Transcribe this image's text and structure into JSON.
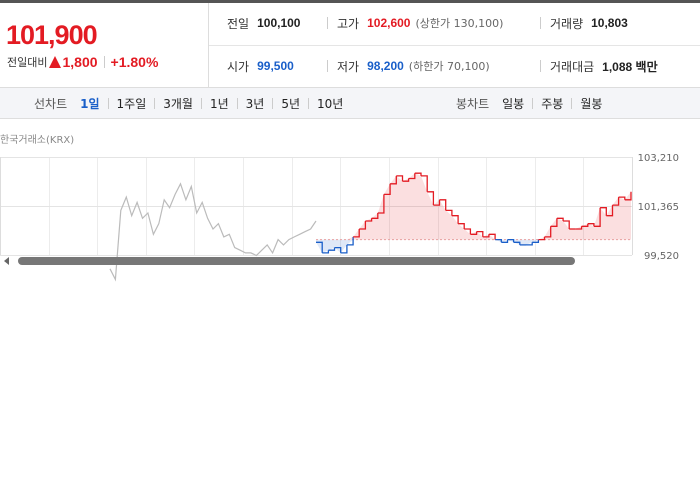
{
  "quote": {
    "price": "101,900",
    "change_label": "전일대비",
    "change_value": "1,800",
    "change_rate": "+1.80%"
  },
  "summary": {
    "prev_close": {
      "label": "전일",
      "value": "100,100"
    },
    "high": {
      "label": "고가",
      "value": "102,600",
      "sub": "(상한가 130,100)"
    },
    "volume": {
      "label": "거래량",
      "value": "10,803"
    },
    "open": {
      "label": "시가",
      "value": "99,500"
    },
    "low": {
      "label": "저가",
      "value": "98,200",
      "sub": "(하한가 70,100)"
    },
    "turnover": {
      "label": "거래대금",
      "value": "1,088 백만"
    }
  },
  "line_tabs": {
    "label": "선차트",
    "items": [
      "1일",
      "1주일",
      "3개월",
      "1년",
      "3년",
      "5년",
      "10년"
    ],
    "active": "1일"
  },
  "candle_tabs": {
    "label": "봉차트",
    "items": [
      "일봉",
      "주봉",
      "월봉"
    ]
  },
  "chart": {
    "source": "한국거래소(KRX)",
    "y_ticks": [
      "103,210",
      "101,365",
      "99,520"
    ],
    "up_color": "#e31b23",
    "down_color": "#1a5fc9",
    "prev_day_color": "#bbbbbb"
  },
  "chart_data": {
    "type": "line",
    "y_ticks": [
      103210,
      101365,
      99520
    ],
    "ylim": [
      99520,
      103210
    ],
    "baseline": 100100,
    "prev_day_series": [
      99000,
      98600,
      101200,
      101700,
      101000,
      101500,
      100900,
      101100,
      100300,
      100700,
      101600,
      101300,
      101800,
      102200,
      101600,
      102100,
      101100,
      101500,
      100900,
      100500,
      100700,
      100200,
      100300,
      99800,
      99700,
      99600,
      99600,
      99500,
      99700,
      99900,
      99600,
      100100,
      99900,
      100100,
      100200,
      100300,
      100400,
      100500,
      100800
    ],
    "today_series": [
      100000,
      99600,
      99700,
      99800,
      99600,
      99900,
      100200,
      100500,
      100800,
      100900,
      101100,
      101800,
      102200,
      102500,
      102300,
      102400,
      102600,
      102500,
      101900,
      101400,
      101600,
      101200,
      101000,
      100700,
      100500,
      100300,
      100400,
      100200,
      100300,
      100100,
      100000,
      100100,
      100000,
      99900,
      99900,
      100000,
      100100,
      100200,
      100600,
      100900,
      100800,
      100500,
      100500,
      100600,
      100700,
      100600,
      101300,
      101000,
      101400,
      101700,
      101600,
      101900
    ]
  }
}
